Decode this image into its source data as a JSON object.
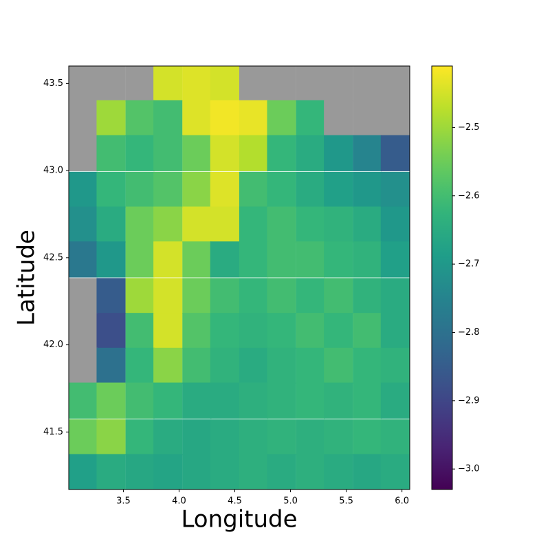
{
  "chart_data": {
    "type": "heatmap",
    "xlabel": "Longitude",
    "ylabel": "Latitude",
    "colormap": "viridis",
    "missing_color": "#999999",
    "x": [
      3.14,
      3.39,
      3.65,
      3.9,
      4.16,
      4.41,
      4.67,
      4.92,
      5.18,
      5.43,
      5.69,
      5.94
    ],
    "y": [
      43.5,
      43.3,
      43.1,
      42.89,
      42.69,
      42.49,
      42.28,
      42.08,
      41.88,
      41.68,
      41.47,
      41.27
    ],
    "z": [
      [
        null,
        null,
        null,
        -2.45,
        -2.44,
        -2.45,
        null,
        null,
        null,
        null,
        null,
        null
      ],
      [
        null,
        -2.5,
        -2.58,
        -2.6,
        -2.44,
        -2.42,
        -2.43,
        -2.55,
        -2.62,
        null,
        null,
        null
      ],
      [
        null,
        -2.6,
        -2.62,
        -2.6,
        -2.55,
        -2.45,
        -2.48,
        -2.62,
        -2.65,
        -2.7,
        -2.75,
        -2.85
      ],
      [
        -2.7,
        -2.62,
        -2.6,
        -2.58,
        -2.52,
        -2.44,
        -2.6,
        -2.62,
        -2.65,
        -2.68,
        -2.7,
        -2.72
      ],
      [
        -2.72,
        -2.65,
        -2.55,
        -2.52,
        -2.45,
        -2.45,
        -2.62,
        -2.6,
        -2.62,
        -2.63,
        -2.65,
        -2.7
      ],
      [
        -2.78,
        -2.7,
        -2.55,
        -2.45,
        -2.55,
        -2.65,
        -2.62,
        -2.6,
        -2.6,
        -2.62,
        -2.63,
        -2.68
      ],
      [
        null,
        -2.85,
        -2.5,
        -2.45,
        -2.55,
        -2.6,
        -2.62,
        -2.6,
        -2.62,
        -2.6,
        -2.63,
        -2.65
      ],
      [
        null,
        -2.88,
        -2.6,
        -2.45,
        -2.58,
        -2.62,
        -2.63,
        -2.62,
        -2.6,
        -2.62,
        -2.6,
        -2.65
      ],
      [
        null,
        -2.8,
        -2.62,
        -2.52,
        -2.6,
        -2.63,
        -2.65,
        -2.63,
        -2.62,
        -2.6,
        -2.62,
        -2.63
      ],
      [
        -2.6,
        -2.55,
        -2.6,
        -2.62,
        -2.65,
        -2.65,
        -2.64,
        -2.63,
        -2.62,
        -2.63,
        -2.62,
        -2.65
      ],
      [
        -2.55,
        -2.52,
        -2.62,
        -2.65,
        -2.66,
        -2.65,
        -2.64,
        -2.63,
        -2.64,
        -2.63,
        -2.62,
        -2.63
      ],
      [
        -2.68,
        -2.65,
        -2.66,
        -2.67,
        -2.66,
        -2.65,
        -2.64,
        -2.65,
        -2.64,
        -2.65,
        -2.66,
        -2.65
      ]
    ],
    "xlim": [
      3.01,
      6.07
    ],
    "ylim": [
      41.17,
      43.6
    ],
    "xticks": [
      3.5,
      {
        "value": 4,
        "label": "4.0"
      },
      4.5,
      {
        "value": 5,
        "label": "5.0"
      },
      5.5,
      {
        "value": 6,
        "label": "6.0"
      }
    ],
    "yticks": [
      41.5,
      {
        "value": 42,
        "label": "42.0"
      },
      42.5,
      {
        "value": 43,
        "label": "43.0"
      },
      43.5
    ],
    "clim": [
      -3.03,
      -2.41
    ],
    "cticks": [
      {
        "value": -3.0,
        "label": "−3.0"
      },
      {
        "value": -2.9,
        "label": "−2.9"
      },
      {
        "value": -2.8,
        "label": "−2.8"
      },
      {
        "value": -2.7,
        "label": "−2.7"
      },
      {
        "value": -2.6,
        "label": "−2.6"
      },
      {
        "value": -2.5,
        "label": "−2.5"
      }
    ]
  }
}
